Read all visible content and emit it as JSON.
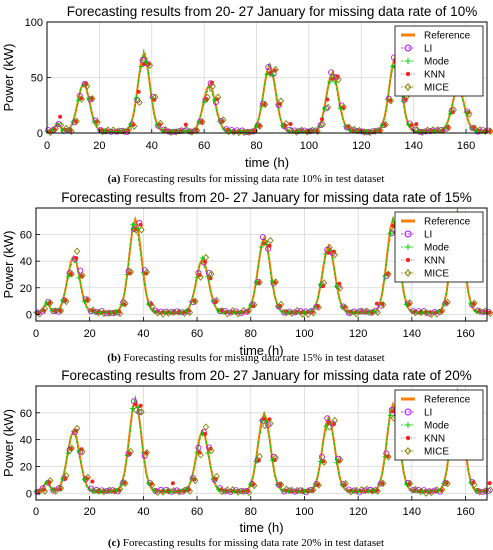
{
  "chart_data": [
    {
      "type": "line",
      "title": "Forecasting results from 20- 27 January for missing data rate of 10%",
      "xlabel": "time (h)",
      "ylabel": "Power (kW)",
      "xlim": [
        0,
        168
      ],
      "ylim": [
        0,
        100
      ],
      "xticks": [
        0,
        20,
        40,
        60,
        80,
        100,
        120,
        140,
        160
      ],
      "yticks": [
        0,
        50,
        100
      ],
      "grid": true,
      "legend": "top-right",
      "peaks": [
        {
          "x": 14,
          "y": 43
        },
        {
          "x": 37,
          "y": 70
        },
        {
          "x": 62,
          "y": 42
        },
        {
          "x": 85,
          "y": 60
        },
        {
          "x": 109,
          "y": 53
        },
        {
          "x": 133,
          "y": 67
        },
        {
          "x": 157,
          "y": 40
        }
      ],
      "caption_prefix": "(a)",
      "caption": "Forecasting results for missing data rate 10% in test dataset"
    },
    {
      "type": "line",
      "title": "Forecasting results from 20- 27 January for missing data rate of 15%",
      "xlabel": "time (h)",
      "ylabel": "Power (kW)",
      "xlim": [
        0,
        168
      ],
      "ylim": [
        -5,
        80
      ],
      "xticks": [
        0,
        20,
        40,
        60,
        80,
        100,
        120,
        140,
        160
      ],
      "yticks": [
        0,
        20,
        40,
        60
      ],
      "grid": true,
      "legend": "top-right",
      "peaks": [
        {
          "x": 14,
          "y": 42
        },
        {
          "x": 37,
          "y": 70
        },
        {
          "x": 62,
          "y": 40
        },
        {
          "x": 85,
          "y": 56
        },
        {
          "x": 109,
          "y": 50
        },
        {
          "x": 133,
          "y": 70
        },
        {
          "x": 157,
          "y": 75
        }
      ],
      "caption_prefix": "(b)",
      "caption": "Forecasting results for missing data rate 15% in test dataset"
    },
    {
      "type": "line",
      "title": "Forecasting results from 20- 27 January for missing data rate of 20%",
      "xlabel": "time (h)",
      "ylabel": "Power (kW)",
      "xlim": [
        0,
        168
      ],
      "ylim": [
        -5,
        80
      ],
      "xticks": [
        0,
        20,
        40,
        60,
        80,
        100,
        120,
        140,
        160
      ],
      "yticks": [
        0,
        20,
        40,
        60
      ],
      "grid": true,
      "legend": "top-right",
      "peaks": [
        {
          "x": 14,
          "y": 45
        },
        {
          "x": 37,
          "y": 68
        },
        {
          "x": 62,
          "y": 45
        },
        {
          "x": 85,
          "y": 58
        },
        {
          "x": 109,
          "y": 55
        },
        {
          "x": 133,
          "y": 65
        },
        {
          "x": 157,
          "y": 75
        }
      ],
      "caption_prefix": "(c)",
      "caption": "Forecasting results for missing data rate 20% in test dataset"
    }
  ],
  "legend": [
    {
      "name": "Reference",
      "color": "#ff8000",
      "marker": "line"
    },
    {
      "name": "LI",
      "color": "#b000ff",
      "marker": "circle"
    },
    {
      "name": "Mode",
      "color": "#00cc00",
      "marker": "plus"
    },
    {
      "name": "KNN",
      "color": "#ff2020",
      "marker": "star"
    },
    {
      "name": "MICE",
      "color": "#808000",
      "marker": "diamond"
    }
  ]
}
